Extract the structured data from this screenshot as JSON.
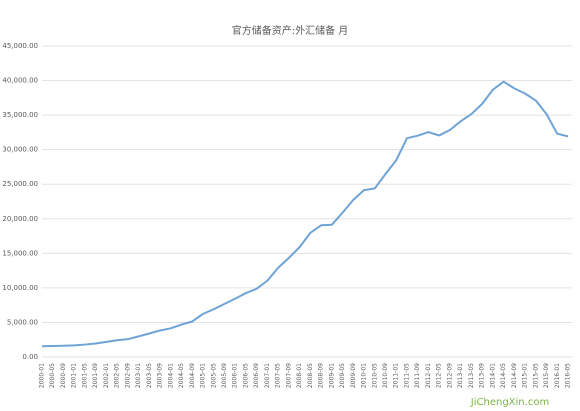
{
  "chart_data": {
    "type": "line",
    "title": "官方储备资产:外汇储备 月",
    "categories": [
      "2000-01",
      "2000-05",
      "2000-09",
      "2001-01",
      "2001-05",
      "2001-09",
      "2002-01",
      "2002-05",
      "2002-09",
      "2003-01",
      "2003-05",
      "2003-09",
      "2004-01",
      "2004-05",
      "2004-09",
      "2005-01",
      "2005-05",
      "2005-09",
      "2006-01",
      "2006-05",
      "2006-09",
      "2007-01",
      "2007-05",
      "2007-09",
      "2008-01",
      "2008-05",
      "2008-09",
      "2009-01",
      "2009-05",
      "2009-09",
      "2010-01",
      "2010-05",
      "2010-09",
      "2011-01",
      "2011-05",
      "2011-09",
      "2012-01",
      "2012-05",
      "2012-09",
      "2013-01",
      "2013-05",
      "2013-09",
      "2014-01",
      "2014-05",
      "2014-09",
      "2015-01",
      "2015-05",
      "2015-09",
      "2016-01",
      "2016-05"
    ],
    "series": [
      {
        "color": "#6fa3d6",
        "values": [
          1560,
          1600,
          1630,
          1690,
          1800,
          1960,
          2190,
          2430,
          2580,
          2980,
          3400,
          3840,
          4150,
          4700,
          5140,
          6240,
          6910,
          7690,
          8450,
          9250,
          9880,
          11050,
          12920,
          14340,
          15900,
          17970,
          19060,
          19130,
          20890,
          22730,
          24150,
          24390,
          26480,
          28470,
          31660,
          32020,
          32540,
          32060,
          32850,
          34100,
          35150,
          36630,
          38670,
          39840,
          38870,
          38130,
          37110,
          35140,
          32310,
          31920
        ]
      }
    ],
    "ylim": [
      0,
      45000
    ],
    "yticks": [
      {
        "value": 0,
        "label": "0.00"
      },
      {
        "value": 5000,
        "label": "5,000.00"
      },
      {
        "value": 10000,
        "label": "10,000.00"
      },
      {
        "value": 15000,
        "label": "15,000.00"
      },
      {
        "value": 20000,
        "label": "20,000.00"
      },
      {
        "value": 25000,
        "label": "25,000.00"
      },
      {
        "value": 30000,
        "label": "30,000.00"
      },
      {
        "value": 35000,
        "label": "35,000.00"
      },
      {
        "value": 40000,
        "label": "40,000.00"
      },
      {
        "value": 45000,
        "label": "45,000.00"
      }
    ],
    "grid": true,
    "watermark": "JiChengXin.com"
  }
}
